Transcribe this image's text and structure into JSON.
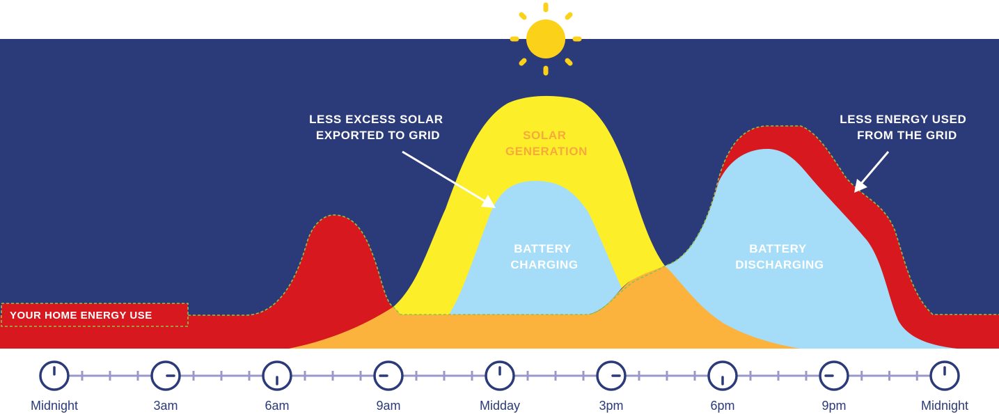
{
  "labels": {
    "solar_generation": [
      "SOLAR",
      "GENERATION"
    ],
    "battery_charging": [
      "BATTERY",
      "CHARGING"
    ],
    "battery_discharging": [
      "BATTERY",
      "DISCHARGING"
    ],
    "less_excess_solar": [
      "LESS EXCESS SOLAR",
      "EXPORTED TO GRID"
    ],
    "less_energy_used": [
      "LESS ENERGY USED",
      "FROM THE GRID"
    ],
    "home_energy_use": "YOUR HOME ENERGY USE"
  },
  "timeline": [
    "Midnight",
    "3am",
    "6am",
    "9am",
    "Midday",
    "3pm",
    "6pm",
    "9pm",
    "Midnight"
  ],
  "colors": {
    "sky": "#2b3a78",
    "grid_use": "#d7191f",
    "solar": "#fcef2a",
    "battery": "#a5dcf7",
    "self_consumed_solar": "#fbb33e",
    "sun": "#fcd11a",
    "timeline": "#2b3a78",
    "timeline_track": "#9a98c8"
  }
}
